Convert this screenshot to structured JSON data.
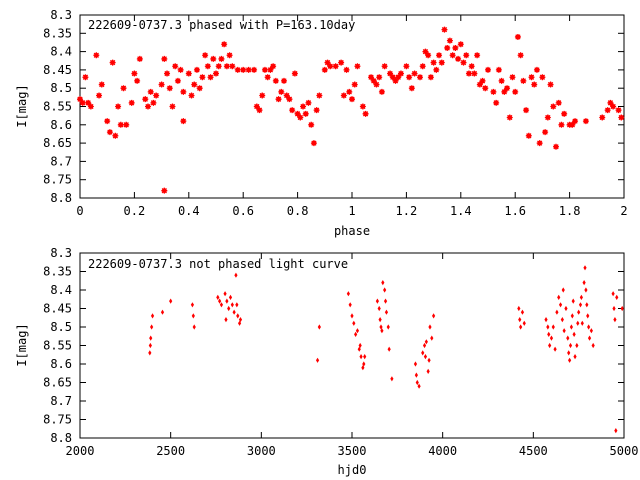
{
  "chart_data": [
    {
      "type": "scatter",
      "title": "222609-0737.3 phased with P=163.10day",
      "xlabel": "phase",
      "ylabel": "I[mag]",
      "xlim": [
        0,
        2
      ],
      "ylim": [
        8.8,
        8.3
      ],
      "y_inverted": true,
      "x_ticks": [
        "0",
        "0.2",
        "0.4",
        "0.6",
        "0.8",
        "1",
        "1.2",
        "1.4",
        "1.6",
        "1.8",
        "2"
      ],
      "y_ticks": [
        "8.3",
        "8.35",
        "8.4",
        "8.45",
        "8.5",
        "8.55",
        "8.6",
        "8.65",
        "8.7",
        "8.75",
        "8.8"
      ],
      "marker_color": "#ff0000",
      "grid": false,
      "points": [
        [
          0.0,
          8.53
        ],
        [
          0.01,
          8.54
        ],
        [
          0.02,
          8.47
        ],
        [
          0.03,
          8.54
        ],
        [
          0.04,
          8.55
        ],
        [
          0.06,
          8.41
        ],
        [
          0.07,
          8.52
        ],
        [
          0.08,
          8.49
        ],
        [
          0.1,
          8.59
        ],
        [
          0.11,
          8.62
        ],
        [
          0.12,
          8.43
        ],
        [
          0.13,
          8.63
        ],
        [
          0.14,
          8.55
        ],
        [
          0.15,
          8.6
        ],
        [
          0.16,
          8.5
        ],
        [
          0.17,
          8.6
        ],
        [
          0.19,
          8.54
        ],
        [
          0.2,
          8.46
        ],
        [
          0.21,
          8.48
        ],
        [
          0.22,
          8.42
        ],
        [
          0.24,
          8.53
        ],
        [
          0.25,
          8.55
        ],
        [
          0.26,
          8.51
        ],
        [
          0.27,
          8.54
        ],
        [
          0.28,
          8.52
        ],
        [
          0.3,
          8.49
        ],
        [
          0.31,
          8.78
        ],
        [
          0.31,
          8.42
        ],
        [
          0.32,
          8.46
        ],
        [
          0.33,
          8.5
        ],
        [
          0.34,
          8.55
        ],
        [
          0.35,
          8.44
        ],
        [
          0.36,
          8.48
        ],
        [
          0.37,
          8.45
        ],
        [
          0.38,
          8.59
        ],
        [
          0.38,
          8.51
        ],
        [
          0.4,
          8.46
        ],
        [
          0.41,
          8.52
        ],
        [
          0.42,
          8.49
        ],
        [
          0.43,
          8.45
        ],
        [
          0.44,
          8.5
        ],
        [
          0.45,
          8.47
        ],
        [
          0.46,
          8.41
        ],
        [
          0.47,
          8.44
        ],
        [
          0.48,
          8.47
        ],
        [
          0.49,
          8.42
        ],
        [
          0.5,
          8.46
        ],
        [
          0.51,
          8.44
        ],
        [
          0.52,
          8.42
        ],
        [
          0.53,
          8.38
        ],
        [
          0.54,
          8.44
        ],
        [
          0.55,
          8.41
        ],
        [
          0.56,
          8.44
        ],
        [
          0.58,
          8.45
        ],
        [
          0.6,
          8.45
        ],
        [
          0.62,
          8.45
        ],
        [
          0.64,
          8.45
        ],
        [
          0.65,
          8.55
        ],
        [
          0.66,
          8.56
        ],
        [
          0.67,
          8.52
        ],
        [
          0.68,
          8.45
        ],
        [
          0.69,
          8.47
        ],
        [
          0.7,
          8.45
        ],
        [
          0.71,
          8.44
        ],
        [
          0.72,
          8.48
        ],
        [
          0.73,
          8.53
        ],
        [
          0.74,
          8.51
        ],
        [
          0.75,
          8.48
        ],
        [
          0.76,
          8.52
        ],
        [
          0.77,
          8.53
        ],
        [
          0.78,
          8.56
        ],
        [
          0.79,
          8.46
        ],
        [
          0.8,
          8.57
        ],
        [
          0.81,
          8.58
        ],
        [
          0.82,
          8.55
        ],
        [
          0.83,
          8.57
        ],
        [
          0.84,
          8.54
        ],
        [
          0.85,
          8.6
        ],
        [
          0.86,
          8.65
        ],
        [
          0.87,
          8.56
        ],
        [
          0.88,
          8.52
        ],
        [
          0.9,
          8.45
        ],
        [
          0.91,
          8.43
        ],
        [
          0.92,
          8.44
        ],
        [
          0.94,
          8.44
        ],
        [
          0.96,
          8.43
        ],
        [
          0.97,
          8.52
        ],
        [
          0.98,
          8.45
        ],
        [
          0.99,
          8.51
        ],
        [
          1.0,
          8.53
        ],
        [
          1.01,
          8.49
        ],
        [
          1.02,
          8.44
        ],
        [
          1.04,
          8.55
        ],
        [
          1.05,
          8.57
        ],
        [
          1.07,
          8.47
        ],
        [
          1.08,
          8.48
        ],
        [
          1.09,
          8.49
        ],
        [
          1.1,
          8.47
        ],
        [
          1.11,
          8.51
        ],
        [
          1.12,
          8.44
        ],
        [
          1.14,
          8.46
        ],
        [
          1.15,
          8.47
        ],
        [
          1.16,
          8.48
        ],
        [
          1.17,
          8.47
        ],
        [
          1.18,
          8.46
        ],
        [
          1.2,
          8.44
        ],
        [
          1.21,
          8.47
        ],
        [
          1.22,
          8.5
        ],
        [
          1.23,
          8.46
        ],
        [
          1.25,
          8.47
        ],
        [
          1.26,
          8.44
        ],
        [
          1.27,
          8.4
        ],
        [
          1.28,
          8.41
        ],
        [
          1.29,
          8.47
        ],
        [
          1.3,
          8.43
        ],
        [
          1.31,
          8.45
        ],
        [
          1.32,
          8.41
        ],
        [
          1.33,
          8.43
        ],
        [
          1.34,
          8.34
        ],
        [
          1.35,
          8.39
        ],
        [
          1.36,
          8.37
        ],
        [
          1.37,
          8.41
        ],
        [
          1.38,
          8.39
        ],
        [
          1.39,
          8.42
        ],
        [
          1.4,
          8.38
        ],
        [
          1.41,
          8.43
        ],
        [
          1.42,
          8.41
        ],
        [
          1.43,
          8.46
        ],
        [
          1.44,
          8.44
        ],
        [
          1.45,
          8.46
        ],
        [
          1.46,
          8.41
        ],
        [
          1.47,
          8.49
        ],
        [
          1.48,
          8.48
        ],
        [
          1.49,
          8.5
        ],
        [
          1.5,
          8.45
        ],
        [
          1.52,
          8.51
        ],
        [
          1.53,
          8.54
        ],
        [
          1.54,
          8.45
        ],
        [
          1.55,
          8.48
        ],
        [
          1.56,
          8.51
        ],
        [
          1.57,
          8.5
        ],
        [
          1.58,
          8.58
        ],
        [
          1.59,
          8.47
        ],
        [
          1.6,
          8.51
        ],
        [
          1.61,
          8.36
        ],
        [
          1.62,
          8.41
        ],
        [
          1.63,
          8.48
        ],
        [
          1.64,
          8.56
        ],
        [
          1.65,
          8.63
        ],
        [
          1.66,
          8.47
        ],
        [
          1.67,
          8.49
        ],
        [
          1.68,
          8.45
        ],
        [
          1.69,
          8.65
        ],
        [
          1.7,
          8.47
        ],
        [
          1.71,
          8.62
        ],
        [
          1.72,
          8.58
        ],
        [
          1.73,
          8.49
        ],
        [
          1.74,
          8.55
        ],
        [
          1.75,
          8.66
        ],
        [
          1.76,
          8.54
        ],
        [
          1.77,
          8.6
        ],
        [
          1.78,
          8.57
        ],
        [
          1.8,
          8.6
        ],
        [
          1.81,
          8.6
        ],
        [
          1.82,
          8.59
        ],
        [
          1.86,
          8.59
        ],
        [
          1.92,
          8.58
        ],
        [
          1.94,
          8.56
        ],
        [
          1.95,
          8.54
        ],
        [
          1.96,
          8.55
        ],
        [
          1.98,
          8.56
        ],
        [
          1.99,
          8.58
        ]
      ]
    },
    {
      "type": "scatter",
      "title": "222609-0737.3 not phased light curve",
      "xlabel": "hjd0",
      "ylabel": "I[mag]",
      "xlim": [
        2000,
        5000
      ],
      "ylim": [
        8.8,
        8.3
      ],
      "y_inverted": true,
      "x_ticks": [
        "2000",
        "2500",
        "3000",
        "3500",
        "4000",
        "4500",
        "5000"
      ],
      "y_ticks": [
        "8.3",
        "8.35",
        "8.4",
        "8.45",
        "8.5",
        "8.55",
        "8.6",
        "8.65",
        "8.7",
        "8.75",
        "8.8"
      ],
      "marker_color": "#ff0000",
      "grid": false,
      "points": [
        [
          2385,
          8.57
        ],
        [
          2388,
          8.55
        ],
        [
          2390,
          8.53
        ],
        [
          2395,
          8.5
        ],
        [
          2400,
          8.47
        ],
        [
          2455,
          8.46
        ],
        [
          2500,
          8.43
        ],
        [
          2620,
          8.44
        ],
        [
          2625,
          8.47
        ],
        [
          2630,
          8.5
        ],
        [
          2760,
          8.42
        ],
        [
          2770,
          8.43
        ],
        [
          2780,
          8.44
        ],
        [
          2800,
          8.41
        ],
        [
          2805,
          8.48
        ],
        [
          2810,
          8.43
        ],
        [
          2820,
          8.45
        ],
        [
          2830,
          8.42
        ],
        [
          2840,
          8.44
        ],
        [
          2850,
          8.46
        ],
        [
          2860,
          8.36
        ],
        [
          2865,
          8.44
        ],
        [
          2870,
          8.47
        ],
        [
          2880,
          8.49
        ],
        [
          2885,
          8.48
        ],
        [
          3310,
          8.59
        ],
        [
          3320,
          8.5
        ],
        [
          3480,
          8.41
        ],
        [
          3490,
          8.44
        ],
        [
          3500,
          8.47
        ],
        [
          3510,
          8.49
        ],
        [
          3520,
          8.52
        ],
        [
          3530,
          8.51
        ],
        [
          3540,
          8.56
        ],
        [
          3545,
          8.55
        ],
        [
          3550,
          8.58
        ],
        [
          3560,
          8.61
        ],
        [
          3565,
          8.6
        ],
        [
          3570,
          8.58
        ],
        [
          3640,
          8.43
        ],
        [
          3650,
          8.45
        ],
        [
          3655,
          8.48
        ],
        [
          3660,
          8.5
        ],
        [
          3665,
          8.51
        ],
        [
          3670,
          8.38
        ],
        [
          3680,
          8.4
        ],
        [
          3685,
          8.43
        ],
        [
          3690,
          8.46
        ],
        [
          3700,
          8.5
        ],
        [
          3705,
          8.56
        ],
        [
          3720,
          8.64
        ],
        [
          3850,
          8.6
        ],
        [
          3855,
          8.63
        ],
        [
          3860,
          8.65
        ],
        [
          3870,
          8.66
        ],
        [
          3890,
          8.57
        ],
        [
          3900,
          8.55
        ],
        [
          3905,
          8.58
        ],
        [
          3910,
          8.54
        ],
        [
          3920,
          8.62
        ],
        [
          3925,
          8.59
        ],
        [
          3930,
          8.5
        ],
        [
          3940,
          8.53
        ],
        [
          3950,
          8.47
        ],
        [
          4420,
          8.45
        ],
        [
          4425,
          8.48
        ],
        [
          4430,
          8.5
        ],
        [
          4440,
          8.46
        ],
        [
          4450,
          8.49
        ],
        [
          4570,
          8.48
        ],
        [
          4580,
          8.5
        ],
        [
          4585,
          8.52
        ],
        [
          4590,
          8.55
        ],
        [
          4600,
          8.53
        ],
        [
          4610,
          8.5
        ],
        [
          4620,
          8.56
        ],
        [
          4630,
          8.46
        ],
        [
          4640,
          8.42
        ],
        [
          4650,
          8.44
        ],
        [
          4660,
          8.48
        ],
        [
          4665,
          8.4
        ],
        [
          4670,
          8.51
        ],
        [
          4680,
          8.45
        ],
        [
          4690,
          8.53
        ],
        [
          4695,
          8.57
        ],
        [
          4700,
          8.59
        ],
        [
          4705,
          8.55
        ],
        [
          4710,
          8.5
        ],
        [
          4715,
          8.47
        ],
        [
          4720,
          8.43
        ],
        [
          4725,
          8.52
        ],
        [
          4730,
          8.58
        ],
        [
          4740,
          8.55
        ],
        [
          4745,
          8.49
        ],
        [
          4750,
          8.46
        ],
        [
          4760,
          8.44
        ],
        [
          4765,
          8.42
        ],
        [
          4770,
          8.49
        ],
        [
          4780,
          8.38
        ],
        [
          4785,
          8.34
        ],
        [
          4790,
          8.4
        ],
        [
          4795,
          8.44
        ],
        [
          4800,
          8.47
        ],
        [
          4805,
          8.5
        ],
        [
          4810,
          8.53
        ],
        [
          4820,
          8.51
        ],
        [
          4830,
          8.55
        ],
        [
          4940,
          8.41
        ],
        [
          4945,
          8.45
        ],
        [
          4950,
          8.48
        ],
        [
          4955,
          8.78
        ],
        [
          4960,
          8.42
        ],
        [
          4990,
          8.45
        ]
      ]
    }
  ]
}
